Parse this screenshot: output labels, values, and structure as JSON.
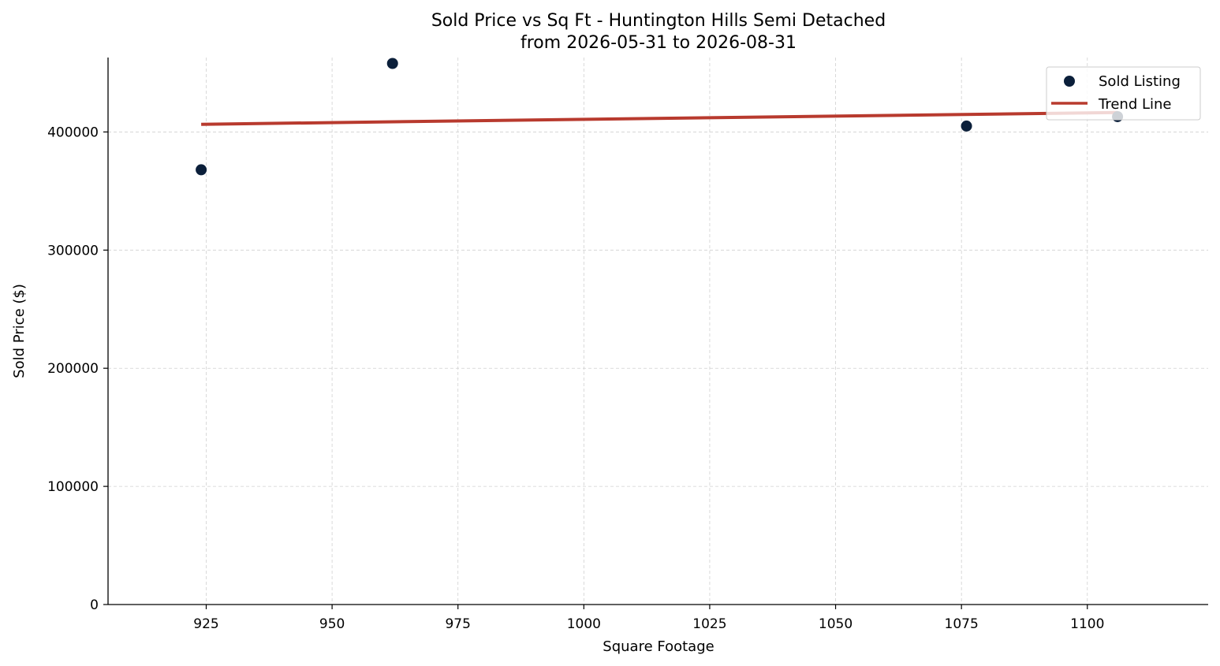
{
  "chart_data": {
    "type": "scatter",
    "title": "Sold Price vs Sq Ft - Huntington Hills Semi Detached",
    "subtitle": "from 2026-05-31 to 2026-08-31",
    "xlabel": "Square Footage",
    "ylabel": "Sold Price ($)",
    "xlim": [
      905.5,
      1124
    ],
    "ylim": [
      0,
      463000
    ],
    "xticks": [
      925,
      950,
      975,
      1000,
      1025,
      1050,
      1075,
      1100
    ],
    "yticks": [
      0,
      100000,
      200000,
      300000,
      400000
    ],
    "grid": true,
    "legend_position": "top-right",
    "series": [
      {
        "name": "Sold Listing",
        "kind": "scatter",
        "color": "#0b1f3a",
        "points": [
          {
            "x": 924,
            "y": 368000
          },
          {
            "x": 962,
            "y": 458000
          },
          {
            "x": 1076,
            "y": 405000
          },
          {
            "x": 1106,
            "y": 413000
          }
        ]
      },
      {
        "name": "Trend Line",
        "kind": "line",
        "color": "#b83a2e",
        "points": [
          {
            "x": 924,
            "y": 406500
          },
          {
            "x": 1106,
            "y": 416500
          }
        ]
      }
    ]
  }
}
